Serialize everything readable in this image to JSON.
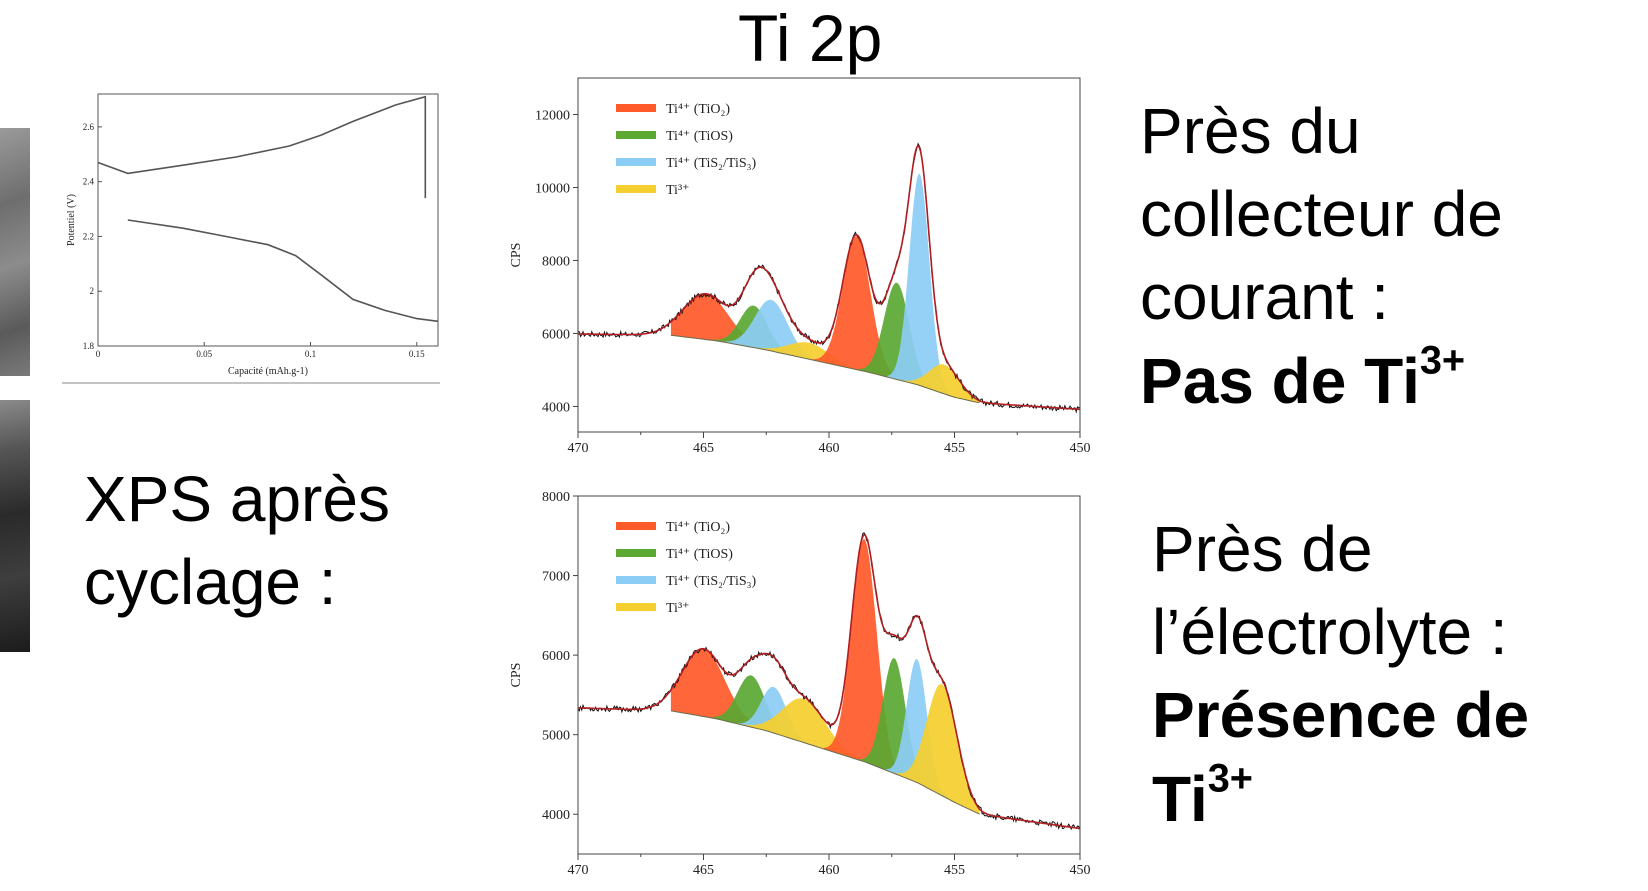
{
  "title": "Ti 2p",
  "left_caption": {
    "line1": "XPS après",
    "line2": "cyclage :"
  },
  "right_top": {
    "line1": "Près du",
    "line2": "collecteur de",
    "line3": "courant :",
    "bold": "Pas de Ti",
    "bold_sup": "3+"
  },
  "right_bottom": {
    "line1": "Près de",
    "line2": "l’électrolyte :",
    "bold1": "Présence de",
    "bold2": "Ti",
    "bold2_sup": "3+"
  },
  "colors": {
    "ti4_tio2": "#ff5a2a",
    "ti4_tios": "#5aa832",
    "ti4_tis": "#8ccdf5",
    "ti3": "#f5cf2e",
    "fit": "#b01e22",
    "raw": "#111111"
  },
  "chart_data": [
    {
      "type": "line",
      "id": "cycling",
      "xlabel": "Capacité (mAh.g-1)",
      "ylabel": "Potentiel (V)",
      "xlim": [
        0,
        0.16
      ],
      "ylim": [
        1.8,
        2.72
      ],
      "x_ticks": [
        0,
        0.05,
        0.1,
        0.15
      ],
      "x_tick_labels": [
        "0",
        "0.05",
        "0.1",
        "0.15"
      ],
      "y_ticks": [
        1.8,
        2,
        2.2,
        2.4,
        2.6
      ],
      "y_tick_labels": [
        "1.8",
        "2",
        "2.2",
        "2.4",
        "2.6"
      ],
      "series": [
        {
          "x": [
            0,
            0.014,
            0.04,
            0.065,
            0.09,
            0.105,
            0.12,
            0.14,
            0.154,
            0.154
          ],
          "y": [
            2.47,
            2.43,
            2.46,
            2.49,
            2.53,
            2.57,
            2.62,
            2.68,
            2.71,
            2.34
          ]
        },
        {
          "x": [
            0.014,
            0.04,
            0.06,
            0.08,
            0.093,
            0.105,
            0.12,
            0.135,
            0.15,
            0.16
          ],
          "y": [
            2.26,
            2.23,
            2.2,
            2.17,
            2.13,
            2.06,
            1.97,
            1.93,
            1.9,
            1.89
          ]
        }
      ]
    },
    {
      "type": "area",
      "id": "xps-top",
      "xlabel": "",
      "ylabel": "CPS",
      "xlim": [
        470,
        450
      ],
      "ylim": [
        3300,
        13000
      ],
      "x_ticks": [
        470,
        465,
        460,
        455,
        450
      ],
      "x_tick_labels": [
        "470",
        "465",
        "460",
        "455",
        "450"
      ],
      "y_ticks": [
        4000,
        6000,
        8000,
        10000,
        12000
      ],
      "y_tick_labels": [
        "4000",
        "6000",
        "8000",
        "10000",
        "12000"
      ],
      "legend": [
        {
          "label": "Ti⁴⁺ (TiO₂)",
          "color": "#ff5a2a"
        },
        {
          "label": "Ti⁴⁺ (TiOS)",
          "color": "#5aa832"
        },
        {
          "label": "Ti⁴⁺ (TiS₂/TiS₃)",
          "color": "#8ccdf5"
        },
        {
          "label": "Ti³⁺",
          "color": "#f5cf2e"
        }
      ],
      "legend_position": "top-left",
      "background": {
        "x": [
          466.3,
          464.5,
          462.5,
          460.5,
          458.5,
          456.5,
          455,
          454
        ],
        "y": [
          5950,
          5800,
          5550,
          5250,
          4950,
          4600,
          4250,
          4100
        ]
      },
      "components": [
        {
          "name": "Ti4+ (TiO2)",
          "center": 464.9,
          "height": 1250,
          "sigma": 0.9,
          "color": "#ff5a2a"
        },
        {
          "name": "Ti4+ (TiOS)",
          "center": 463.0,
          "height": 1150,
          "sigma": 0.55,
          "color": "#5aa832"
        },
        {
          "name": "Ti4+ (TiS2/TiS3)",
          "center": 462.3,
          "height": 1400,
          "sigma": 0.65,
          "color": "#8ccdf5"
        },
        {
          "name": "Ti3+",
          "center": 460.8,
          "height": 450,
          "sigma": 0.8,
          "color": "#f5cf2e"
        },
        {
          "name": "Ti4+ (TiO2)",
          "center": 458.9,
          "height": 3650,
          "sigma": 0.55,
          "color": "#ff5a2a"
        },
        {
          "name": "Ti4+ (TiOS)",
          "center": 457.3,
          "height": 2650,
          "sigma": 0.5,
          "color": "#5aa832"
        },
        {
          "name": "Ti4+ (TiS2/TiS3)",
          "center": 456.4,
          "height": 5800,
          "sigma": 0.4,
          "color": "#8ccdf5"
        },
        {
          "name": "Ti3+",
          "center": 455.4,
          "height": 800,
          "sigma": 0.6,
          "color": "#f5cf2e"
        }
      ]
    },
    {
      "type": "area",
      "id": "xps-bottom",
      "xlabel": "",
      "ylabel": "CPS",
      "xlim": [
        470,
        450
      ],
      "ylim": [
        3500,
        8000
      ],
      "x_ticks": [
        470,
        465,
        460,
        455,
        450
      ],
      "x_tick_labels": [
        "470",
        "465",
        "460",
        "455",
        "450"
      ],
      "y_ticks": [
        4000,
        5000,
        6000,
        7000,
        8000
      ],
      "y_tick_labels": [
        "4000",
        "5000",
        "6000",
        "7000",
        "8000"
      ],
      "legend": [
        {
          "label": "Ti⁴⁺ (TiO₂)",
          "color": "#ff5a2a"
        },
        {
          "label": "Ti⁴⁺ (TiOS)",
          "color": "#5aa832"
        },
        {
          "label": "Ti⁴⁺ (TiS₂/TiS₃)",
          "color": "#8ccdf5"
        },
        {
          "label": "Ti³⁺",
          "color": "#f5cf2e"
        }
      ],
      "legend_position": "top-left",
      "background": {
        "x": [
          466.3,
          464.5,
          462.5,
          460.5,
          458.5,
          456.5,
          455,
          454
        ],
        "y": [
          5300,
          5200,
          5050,
          4850,
          4650,
          4400,
          4150,
          4000
        ]
      },
      "components": [
        {
          "name": "Ti4+ (TiO2)",
          "center": 465.0,
          "height": 850,
          "sigma": 0.85,
          "color": "#ff5a2a"
        },
        {
          "name": "Ti4+ (TiOS)",
          "center": 463.1,
          "height": 650,
          "sigma": 0.55,
          "color": "#5aa832"
        },
        {
          "name": "Ti4+ (TiS2/TiS3)",
          "center": 462.2,
          "height": 580,
          "sigma": 0.5,
          "color": "#8ccdf5"
        },
        {
          "name": "Ti3+",
          "center": 461.0,
          "height": 550,
          "sigma": 0.85,
          "color": "#f5cf2e"
        },
        {
          "name": "Ti4+ (TiO2)",
          "center": 458.6,
          "height": 2800,
          "sigma": 0.5,
          "color": "#ff5a2a"
        },
        {
          "name": "Ti4+ (TiOS)",
          "center": 457.4,
          "height": 1450,
          "sigma": 0.45,
          "color": "#5aa832"
        },
        {
          "name": "Ti4+ (TiS2/TiS3)",
          "center": 456.5,
          "height": 1550,
          "sigma": 0.4,
          "color": "#8ccdf5"
        },
        {
          "name": "Ti3+",
          "center": 455.5,
          "height": 1400,
          "sigma": 0.6,
          "color": "#f5cf2e"
        }
      ]
    }
  ]
}
